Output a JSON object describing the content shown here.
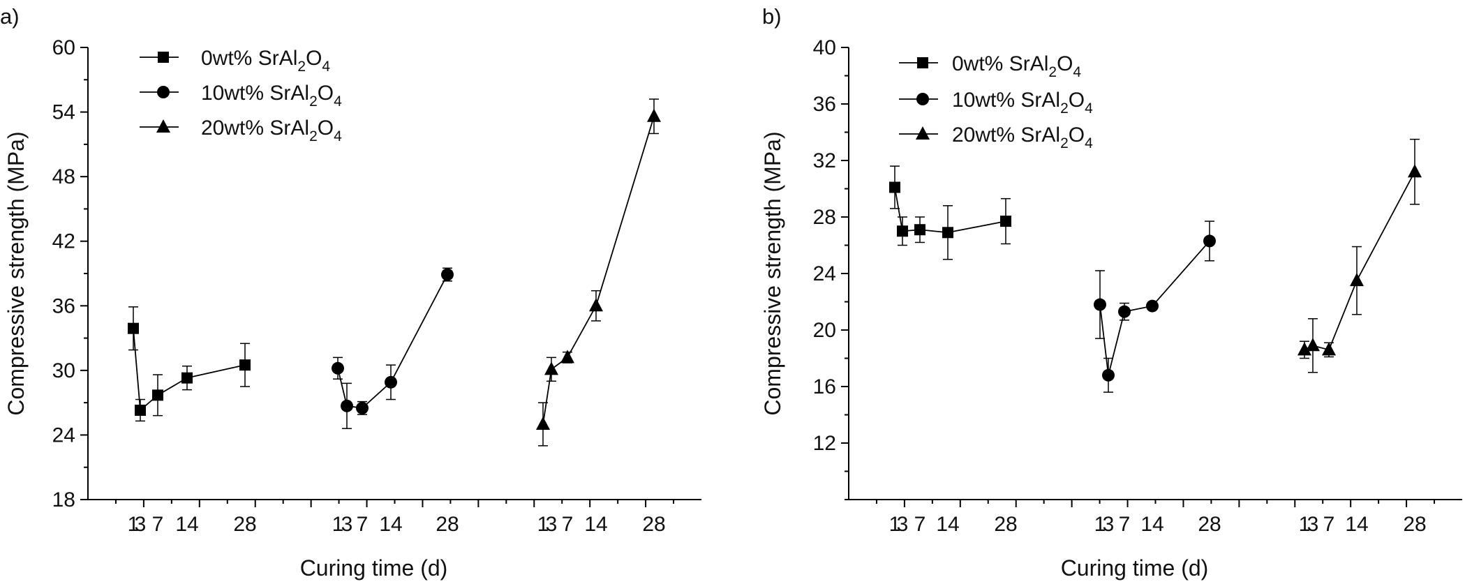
{
  "chart_data": [
    {
      "type": "line",
      "panel_label": "a)",
      "xlabel": "Curing time (d)",
      "ylabel": "Compressive strength (MPa)",
      "ylim": [
        18,
        60
      ],
      "yticks": [
        18,
        24,
        30,
        36,
        42,
        48,
        54,
        60
      ],
      "x_tick_labels": [
        "1",
        "3",
        "7",
        "14",
        "28"
      ],
      "legend_position": "top-left",
      "series": [
        {
          "name": "0wt% SrAl2O4",
          "name_parts": [
            "0wt% SrAl",
            "2",
            "O",
            "4"
          ],
          "marker": "square",
          "x": [
            1,
            3,
            7,
            14,
            28
          ],
          "y": [
            33.9,
            26.3,
            27.7,
            29.3,
            30.5
          ],
          "err": [
            2.0,
            1.0,
            1.9,
            1.1,
            2.0
          ]
        },
        {
          "name": "10wt% SrAl2O4",
          "name_parts": [
            "10wt% SrAl",
            "2",
            "O",
            "4"
          ],
          "marker": "circle",
          "x": [
            1,
            3,
            7,
            14,
            28
          ],
          "y": [
            30.2,
            26.7,
            26.5,
            28.9,
            38.9
          ],
          "err": [
            1.0,
            2.1,
            0.6,
            1.6,
            0.6
          ]
        },
        {
          "name": "20wt% SrAl2O4",
          "name_parts": [
            "20wt% SrAl",
            "2",
            "O",
            "4"
          ],
          "marker": "triangle",
          "x": [
            1,
            3,
            7,
            14,
            28
          ],
          "y": [
            25.0,
            30.1,
            31.2,
            36.0,
            53.6
          ],
          "err": [
            2.0,
            1.1,
            0.5,
            1.4,
            1.6
          ]
        }
      ]
    },
    {
      "type": "line",
      "panel_label": "b)",
      "xlabel": "Curing time (d)",
      "ylabel": "Compressive strength (MPa)",
      "ylim": [
        8,
        40
      ],
      "yticks": [
        12,
        16,
        20,
        24,
        28,
        32,
        36,
        40
      ],
      "x_tick_labels": [
        "1",
        "3",
        "7",
        "14",
        "28"
      ],
      "legend_position": "top-left",
      "series": [
        {
          "name": "0wt% SrAl2O4",
          "name_parts": [
            "0wt% SrAl",
            "2",
            "O",
            "4"
          ],
          "marker": "square",
          "x": [
            1,
            3,
            7,
            14,
            28
          ],
          "y": [
            30.1,
            27.0,
            27.1,
            26.9,
            27.7
          ],
          "err": [
            1.5,
            1.0,
            0.9,
            1.9,
            1.6
          ]
        },
        {
          "name": "10wt% SrAl2O4",
          "name_parts": [
            "10wt% SrAl",
            "2",
            "O",
            "4"
          ],
          "marker": "circle",
          "x": [
            1,
            3,
            7,
            14,
            28
          ],
          "y": [
            21.8,
            16.8,
            21.3,
            21.7,
            26.3
          ],
          "err": [
            2.4,
            1.2,
            0.6,
            0.2,
            1.4
          ]
        },
        {
          "name": "20wt% SrAl2O4",
          "name_parts": [
            "20wt% SrAl",
            "2",
            "O",
            "4"
          ],
          "marker": "triangle",
          "x": [
            1,
            3,
            7,
            14,
            28
          ],
          "y": [
            18.6,
            18.9,
            18.6,
            23.5,
            31.2
          ],
          "err": [
            0.6,
            1.9,
            0.5,
            2.4,
            2.3
          ]
        }
      ]
    }
  ]
}
